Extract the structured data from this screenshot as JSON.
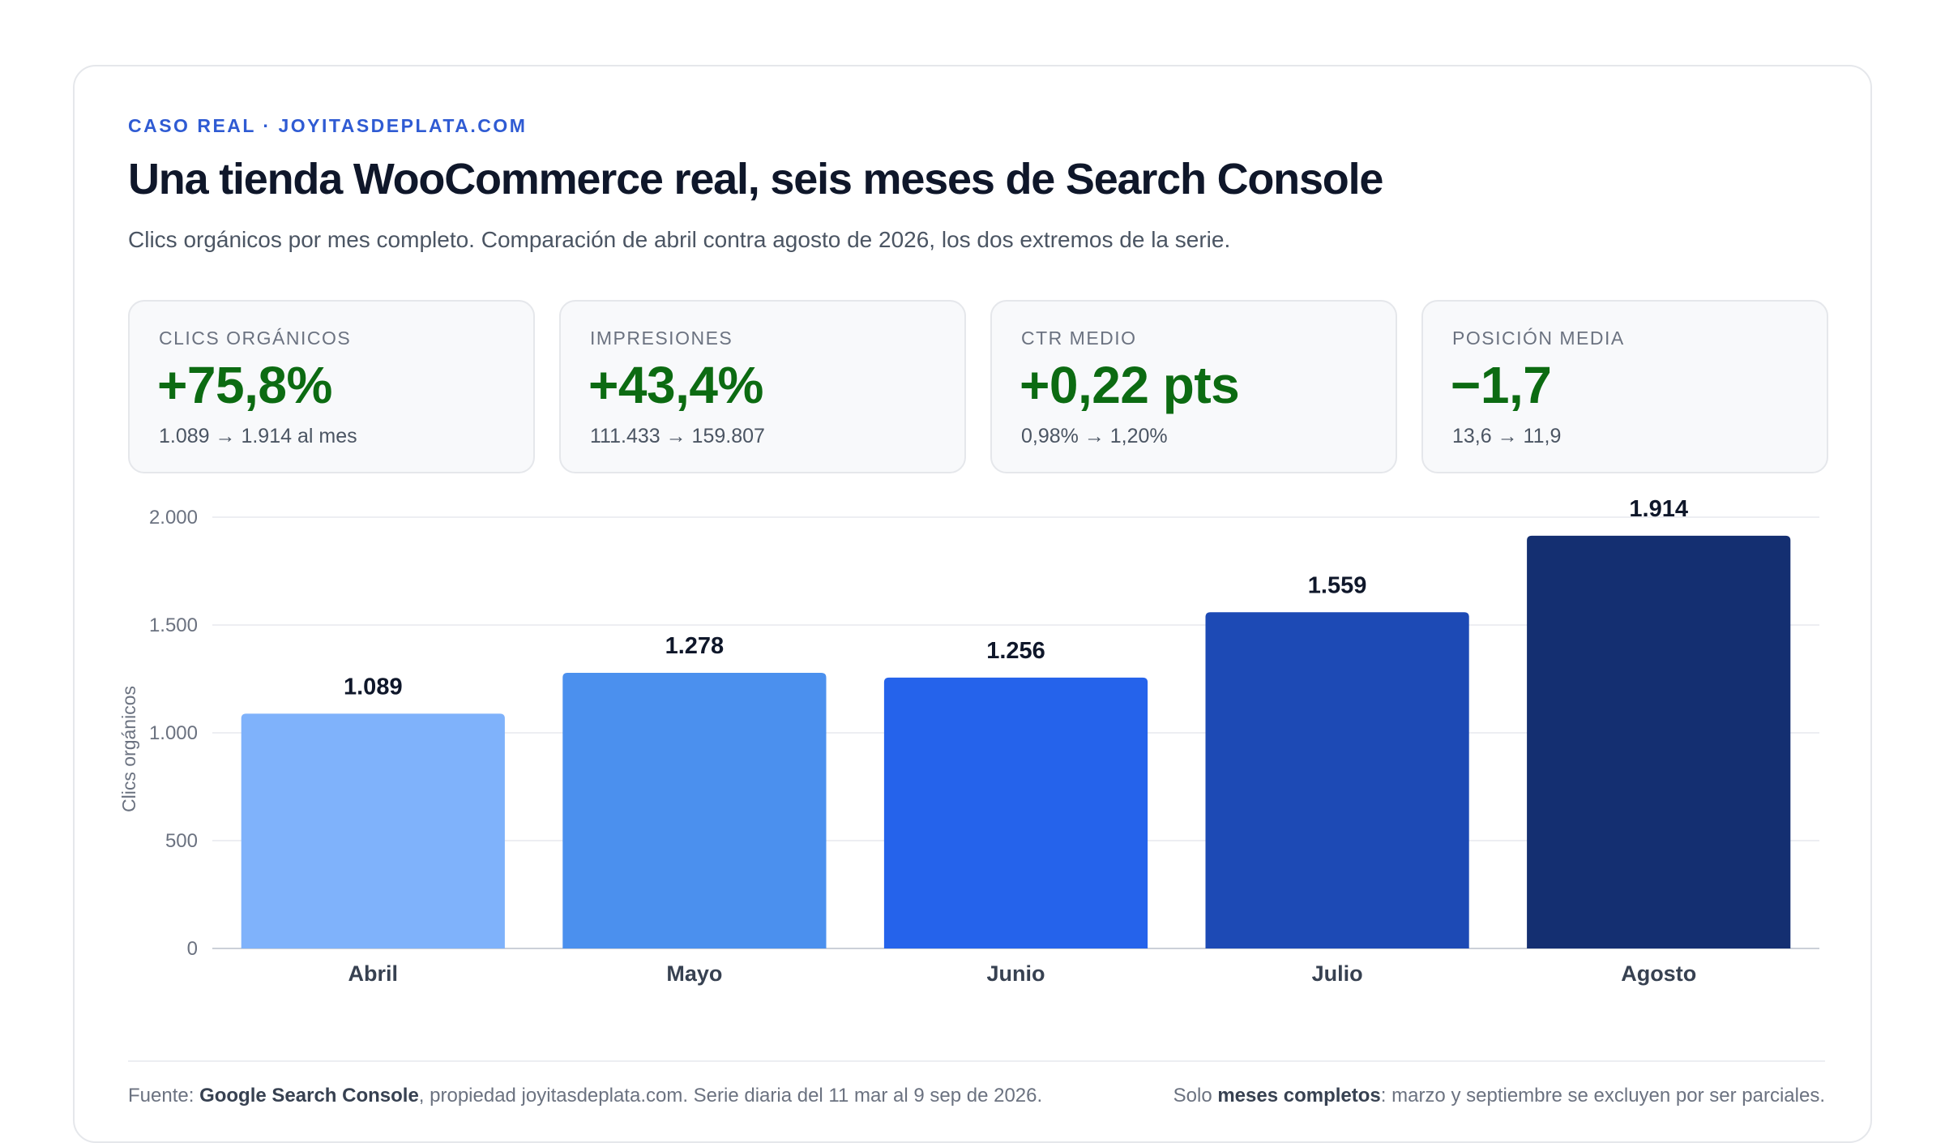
{
  "header": {
    "eyebrow": "CASO REAL · JOYITASDEPLATA.COM",
    "title": "Una tienda WooCommerce real, seis meses de Search Console",
    "subtitle": "Clics orgánicos por mes completo. Comparación de abril contra agosto de 2026, los dos extremos de la serie."
  },
  "kpis": [
    {
      "label": "CLICS ORGÁNICOS",
      "value": "+75,8%",
      "detail": "1.089 → 1.914 al mes"
    },
    {
      "label": "IMPRESIONES",
      "value": "+43,4%",
      "detail": "111.433 → 159.807"
    },
    {
      "label": "CTR MEDIO",
      "value": "+0,22 pts",
      "detail": "0,98% → 1,20%"
    },
    {
      "label": "POSICIÓN MEDIA",
      "value": "−1,7",
      "detail": "13,6 → 11,9"
    }
  ],
  "colors": {
    "accent": "#2f5bd3",
    "positive": "#0c6b12",
    "bars": [
      "#7fb2fb",
      "#4b90ee",
      "#2563eb",
      "#1d4ab5",
      "#142f71"
    ]
  },
  "chart_data": {
    "type": "bar",
    "categories": [
      "Abril",
      "Mayo",
      "Junio",
      "Julio",
      "Agosto"
    ],
    "values": [
      1089,
      1278,
      1256,
      1559,
      1914
    ],
    "value_labels": [
      "1.089",
      "1.278",
      "1.256",
      "1.559",
      "1.914"
    ],
    "ylabel": "Clics orgánicos",
    "ylim": [
      0,
      2000
    ],
    "yticks": [
      0,
      500,
      1000,
      1500,
      2000
    ],
    "ytick_labels": [
      "0",
      "500",
      "1.000",
      "1.500",
      "2.000"
    ],
    "grid": true,
    "legend": "none"
  },
  "footer": {
    "left_prefix": "Fuente: ",
    "left_bold": "Google Search Console",
    "left_rest": ", propiedad joyitasdeplata.com. Serie diaria del 11 mar al 9 sep de 2026.",
    "right_prefix": "Solo ",
    "right_bold": "meses completos",
    "right_rest": ": marzo y septiembre se excluyen por ser parciales."
  }
}
